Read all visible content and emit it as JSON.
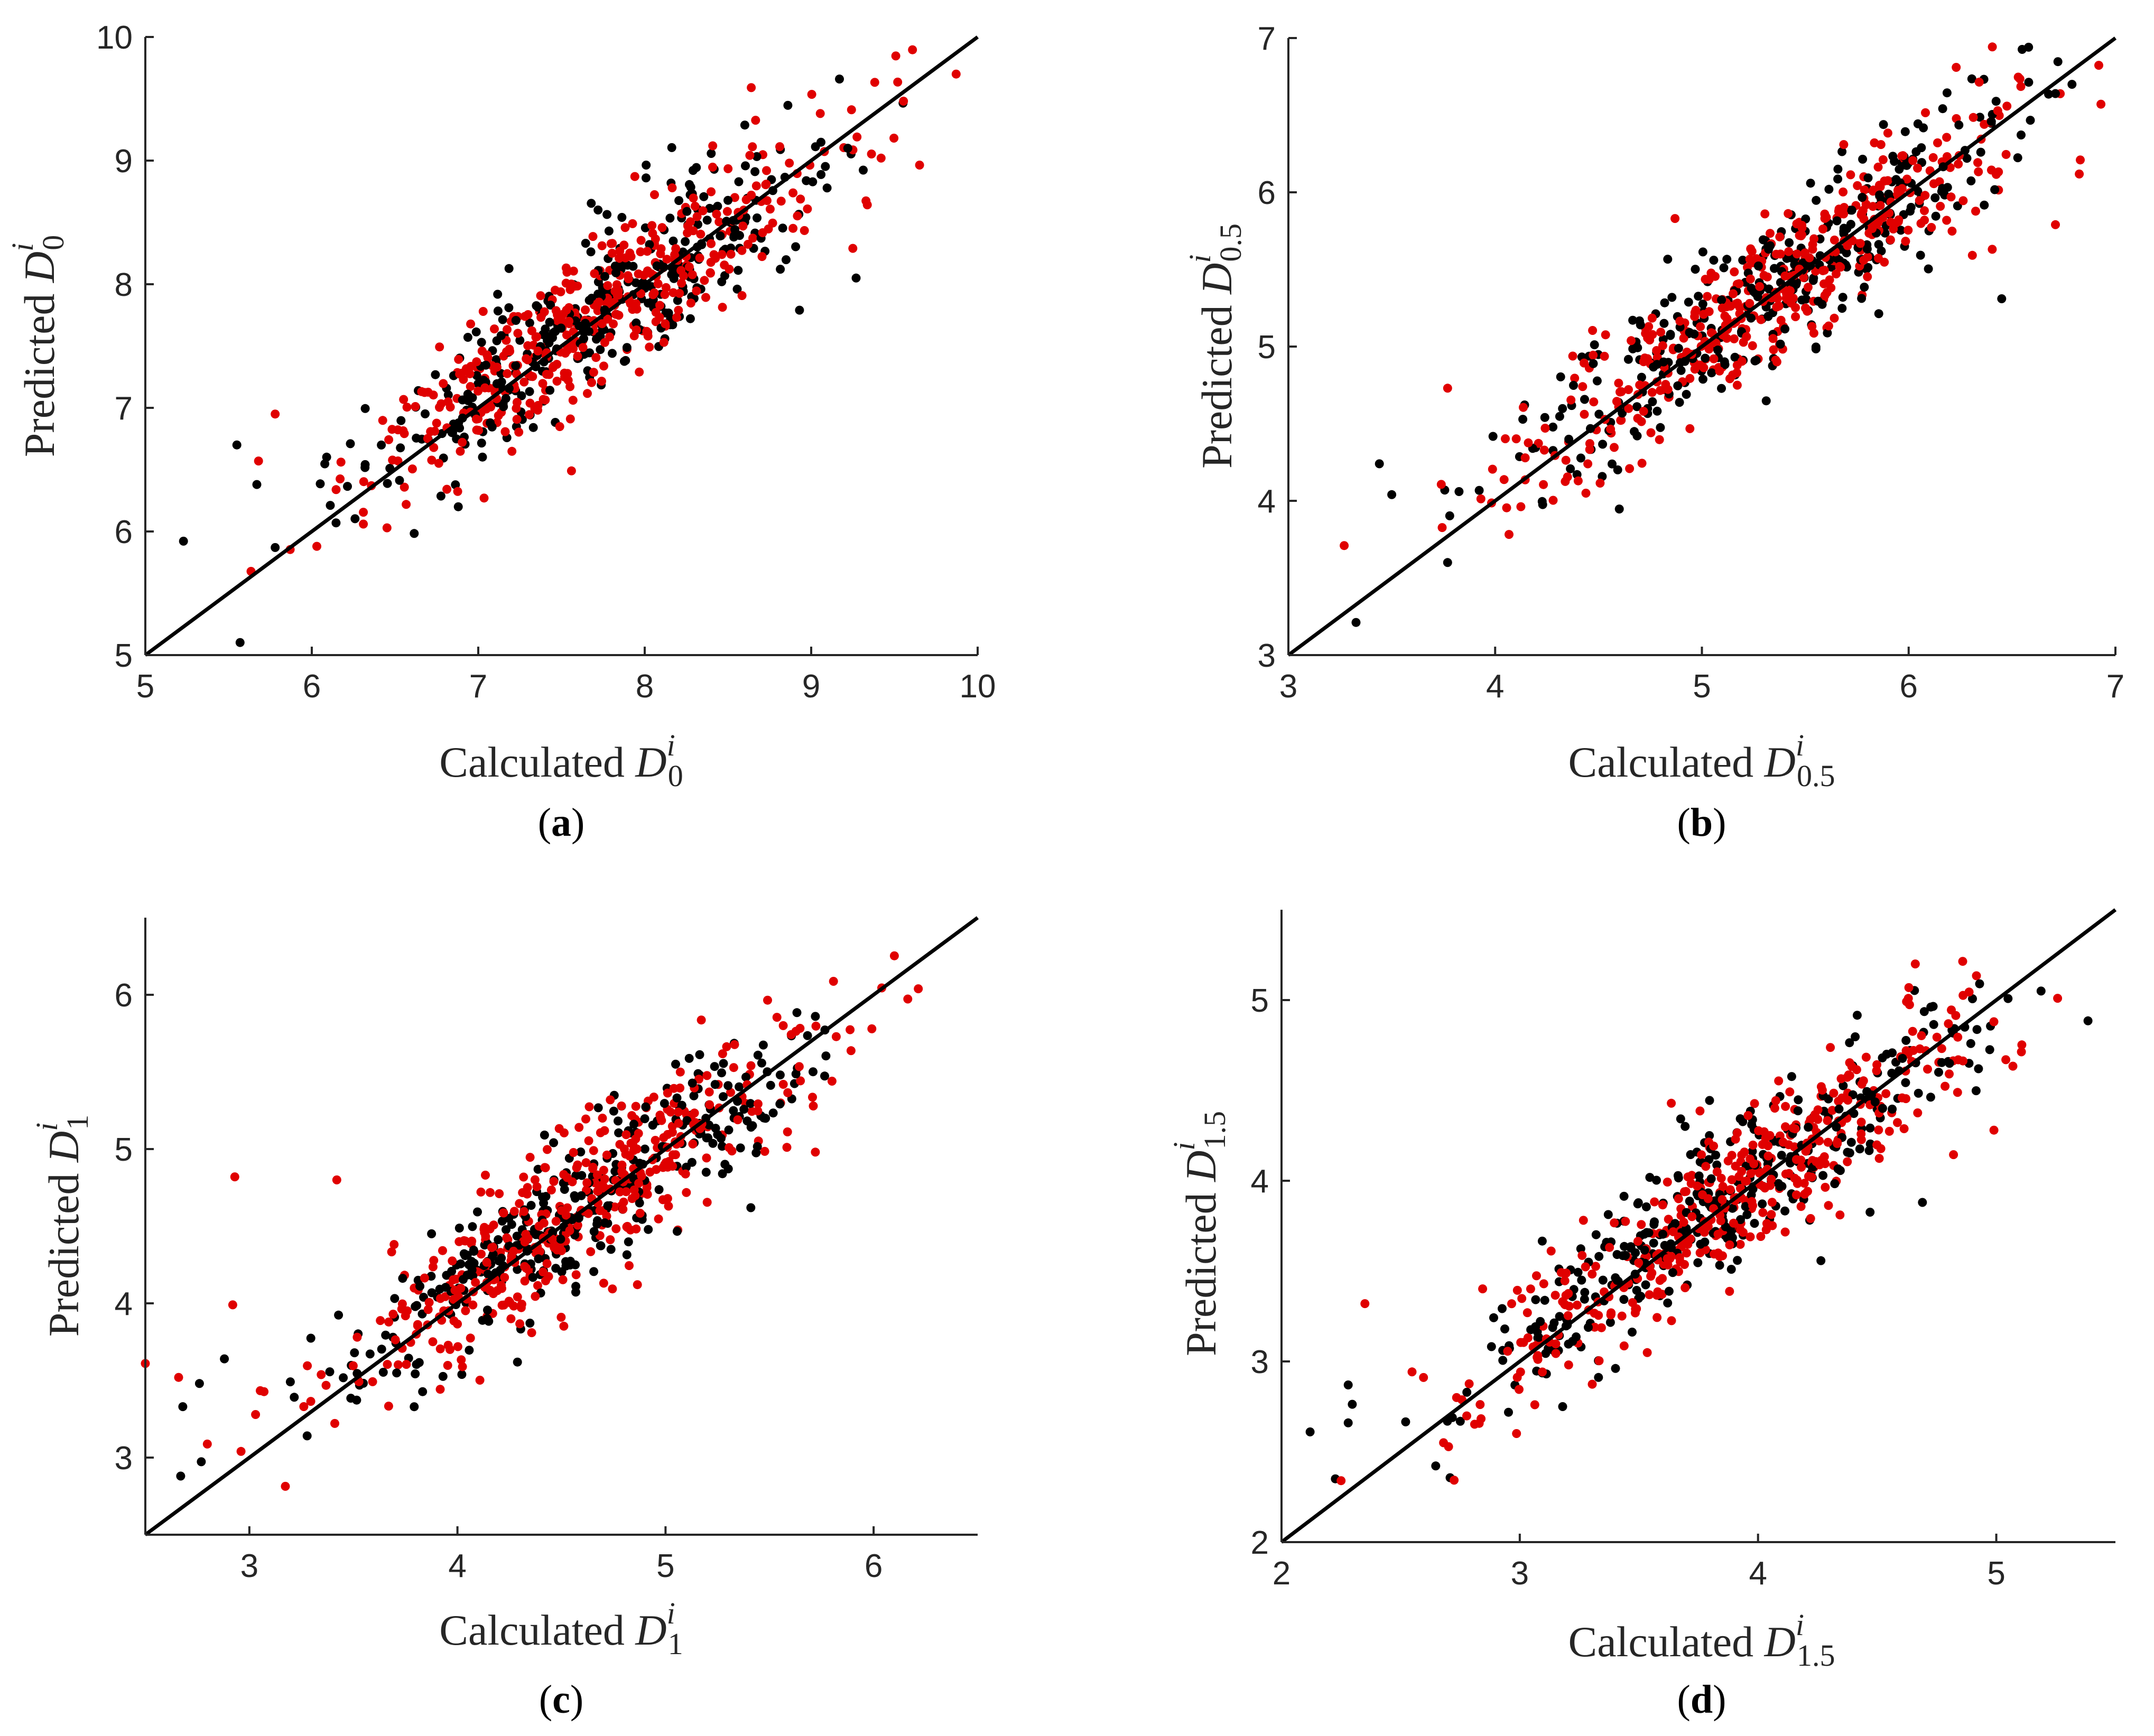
{
  "colors": {
    "series_black": "#000000",
    "series_red": "#e00000",
    "axis": "#262626"
  },
  "chart_data": [
    {
      "type": "scatter",
      "panel": "a",
      "panel_label": {
        "open": "(",
        "letter": "a",
        "close": ")"
      },
      "xlabel": {
        "text": "Calculated ",
        "symbol": "D",
        "sub": "0",
        "sup": "i"
      },
      "ylabel": {
        "text": "Predicted ",
        "symbol": "D",
        "sub": "0",
        "sup": "i"
      },
      "xlim": [
        5,
        10
      ],
      "ylim": [
        5,
        10
      ],
      "xticks": [
        5,
        6,
        7,
        8,
        9,
        10
      ],
      "yticks": [
        5,
        6,
        7,
        8,
        9,
        10
      ],
      "xtick_labels": [
        "5",
        "6",
        "7",
        "8",
        "9",
        "10"
      ],
      "ytick_labels": [
        "5",
        "6",
        "7",
        "8",
        "9",
        "10"
      ],
      "reference_line": "y = x",
      "center": [
        7.75,
        7.75
      ],
      "spread": 0.66,
      "noise": 0.38,
      "series": [
        {
          "name": "black",
          "color": "#000000",
          "n": 360
        },
        {
          "name": "red",
          "color": "#e00000",
          "n": 420
        }
      ],
      "extremes": {
        "black": [
          [
            5.55,
            6.7
          ],
          [
            5.67,
            6.38
          ],
          [
            5.78,
            5.87
          ],
          [
            6.88,
            6.2
          ],
          [
            9.17,
            9.66
          ],
          [
            9.22,
            9.1
          ],
          [
            9.27,
            8.05
          ],
          [
            8.93,
            7.79
          ]
        ],
        "red": [
          [
            5.68,
            6.57
          ],
          [
            5.78,
            6.95
          ],
          [
            6.03,
            5.88
          ],
          [
            6.31,
            6.06
          ],
          [
            9.42,
            9.02
          ],
          [
            9.25,
            8.29
          ],
          [
            8.64,
            9.59
          ],
          [
            7.56,
            6.49
          ]
        ]
      }
    },
    {
      "type": "scatter",
      "panel": "b",
      "panel_label": {
        "open": "(",
        "letter": "b",
        "close": ")"
      },
      "xlabel": {
        "text": "Calculated ",
        "symbol": "D",
        "sub": "0.5",
        "sup": "i"
      },
      "ylabel": {
        "text": "Predicted ",
        "symbol": "D",
        "sub": "0.5",
        "sup": "i"
      },
      "xlim": [
        3,
        7
      ],
      "ylim": [
        3,
        7
      ],
      "xticks": [
        3,
        4,
        5,
        6,
        7
      ],
      "yticks": [
        3,
        4,
        5,
        6,
        7
      ],
      "xtick_labels": [
        "3",
        "4",
        "5",
        "6",
        "7"
      ],
      "ytick_labels": [
        "3",
        "4",
        "5",
        "6",
        "7"
      ],
      "reference_line": "y = x",
      "center": [
        5.35,
        5.35
      ],
      "spread": 0.58,
      "noise": 0.3,
      "series": [
        {
          "name": "black",
          "color": "#000000",
          "n": 360
        },
        {
          "name": "red",
          "color": "#e00000",
          "n": 420
        }
      ],
      "extremes": {
        "black": [
          [
            3.44,
            4.24
          ],
          [
            3.5,
            4.04
          ],
          [
            3.77,
            3.6
          ],
          [
            6.79,
            6.7
          ],
          [
            6.45,
            5.31
          ],
          [
            6.71,
            6.64
          ]
        ],
        "red": [
          [
            3.27,
            3.71
          ],
          [
            3.77,
            4.73
          ],
          [
            6.23,
            6.81
          ],
          [
            6.83,
            6.21
          ],
          [
            6.71,
            5.79
          ],
          [
            4.87,
            5.83
          ]
        ]
      }
    },
    {
      "type": "scatter",
      "panel": "c",
      "panel_label": {
        "open": "(",
        "letter": "c",
        "close": ")"
      },
      "xlabel": {
        "text": "Calculated ",
        "symbol": "D",
        "sub": "1",
        "sup": "i"
      },
      "ylabel": {
        "text": "Predicted ",
        "symbol": "D",
        "sub": "1",
        "sup": "i"
      },
      "xlim": [
        2.5,
        6.5
      ],
      "ylim": [
        2.5,
        6.5
      ],
      "xticks": [
        3,
        4,
        5,
        6
      ],
      "yticks": [
        3,
        4,
        5,
        6
      ],
      "xtick_labels": [
        "3",
        "4",
        "5",
        "6"
      ],
      "ytick_labels": [
        "3",
        "4",
        "5",
        "6"
      ],
      "reference_line": "y = x",
      "center": [
        4.55,
        4.55
      ],
      "spread": 0.55,
      "noise": 0.3,
      "series": [
        {
          "name": "black",
          "color": "#000000",
          "n": 360
        },
        {
          "name": "red",
          "color": "#e00000",
          "n": 420
        }
      ],
      "extremes": {
        "black": [
          [
            2.67,
            2.88
          ],
          [
            2.68,
            3.33
          ],
          [
            2.76,
            3.48
          ],
          [
            2.88,
            3.64
          ],
          [
            5.72,
            5.86
          ],
          [
            5.41,
            4.62
          ]
        ],
        "red": [
          [
            2.5,
            3.61
          ],
          [
            2.66,
            3.52
          ],
          [
            2.93,
            4.82
          ],
          [
            2.96,
            3.04
          ],
          [
            2.92,
            3.99
          ],
          [
            3.42,
            4.8
          ],
          [
            5.8,
            5.44
          ],
          [
            5.72,
            4.98
          ]
        ]
      }
    },
    {
      "type": "scatter",
      "panel": "d",
      "panel_label": {
        "open": "(",
        "letter": "d",
        "close": ")"
      },
      "xlabel": {
        "text": "Calculated ",
        "symbol": "D",
        "sub": "1.5",
        "sup": "i"
      },
      "ylabel": {
        "text": "Predicted ",
        "symbol": "D",
        "sub": "1.5",
        "sup": "i"
      },
      "xlim": [
        2,
        5.5
      ],
      "ylim": [
        2,
        5.5
      ],
      "xticks": [
        2,
        3,
        4,
        5
      ],
      "yticks": [
        2,
        3,
        4,
        5
      ],
      "xtick_labels": [
        "2",
        "3",
        "4",
        "5"
      ],
      "ytick_labels": [
        "2",
        "3",
        "4",
        "5"
      ],
      "reference_line": "y = x",
      "center": [
        3.85,
        3.85
      ],
      "spread": 0.5,
      "noise": 0.27,
      "series": [
        {
          "name": "black",
          "color": "#000000",
          "n": 360
        },
        {
          "name": "red",
          "color": "#e00000",
          "n": 420
        }
      ],
      "extremes": {
        "black": [
          [
            2.12,
            2.61
          ],
          [
            2.28,
            2.66
          ],
          [
            2.28,
            2.87
          ],
          [
            4.93,
            5.09
          ],
          [
            4.69,
            3.88
          ],
          [
            3.18,
            2.75
          ]
        ],
        "red": [
          [
            2.25,
            2.34
          ],
          [
            2.68,
            2.55
          ],
          [
            2.35,
            3.32
          ],
          [
            4.66,
            5.2
          ],
          [
            4.99,
            4.28
          ],
          [
            5.04,
            4.67
          ]
        ]
      }
    }
  ]
}
